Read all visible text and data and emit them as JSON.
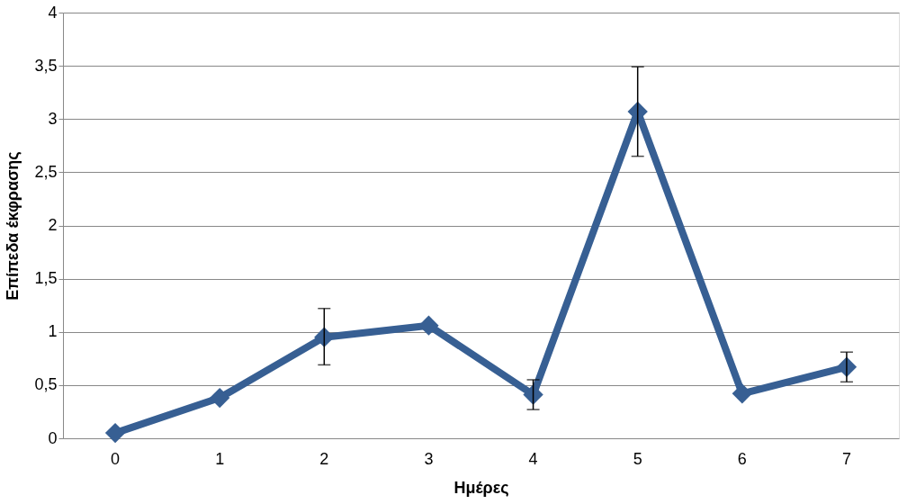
{
  "chart_data": {
    "type": "line",
    "xlabel": "Ημέρες",
    "ylabel": "Επίπεδα έκφρασης",
    "categories": [
      "0",
      "1",
      "2",
      "3",
      "4",
      "5",
      "6",
      "7"
    ],
    "series": [
      {
        "color": "#375f93",
        "values": [
          0.05,
          0.38,
          0.95,
          1.06,
          0.41,
          3.07,
          0.42,
          0.67
        ],
        "errors": [
          null,
          null,
          [
            0.69,
            1.22
          ],
          null,
          [
            0.27,
            0.55
          ],
          [
            2.65,
            3.49
          ],
          null,
          [
            0.53,
            0.81
          ]
        ]
      }
    ],
    "ylim": [
      0,
      4
    ],
    "yticks": [
      0,
      {
        "value": 0.5,
        "label": "0,5"
      },
      1,
      {
        "value": 1.5,
        "label": "1,5"
      },
      2,
      {
        "value": 2.5,
        "label": "2,5"
      },
      3,
      {
        "value": 3.5,
        "label": "3,5"
      },
      4
    ],
    "grid": "y",
    "marker": "diamond",
    "line_style": "solid"
  }
}
